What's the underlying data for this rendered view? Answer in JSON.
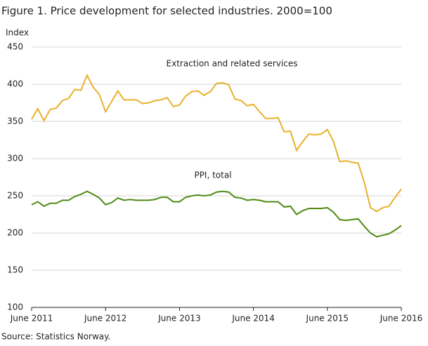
{
  "chart_data": {
    "type": "line",
    "title": "Figure 1. Price development for selected industries. 2000=100",
    "y_label": "Index",
    "source": "Source: Statistics Norway.",
    "annotations": [
      "Extraction and related services",
      "PPI, total"
    ],
    "categories": [
      "June 2011",
      null,
      null,
      null,
      null,
      null,
      null,
      null,
      null,
      null,
      null,
      null,
      "June 2012",
      null,
      null,
      null,
      null,
      null,
      null,
      null,
      null,
      null,
      null,
      null,
      "June 2013",
      null,
      null,
      null,
      null,
      null,
      null,
      null,
      null,
      null,
      null,
      null,
      "June 2014",
      null,
      null,
      null,
      null,
      null,
      null,
      null,
      null,
      null,
      null,
      null,
      "June 2015",
      null,
      null,
      null,
      null,
      null,
      null,
      null,
      null,
      null,
      null,
      null,
      "June 2016"
    ],
    "series": [
      {
        "name": "Extraction and related services",
        "color": "#e8b12c",
        "values": [
          353,
          367,
          351,
          366,
          368,
          378,
          381,
          393,
          392,
          412,
          396,
          386,
          363,
          377,
          391,
          379,
          379,
          379,
          374,
          375,
          378,
          379,
          382,
          370,
          372,
          384,
          390,
          391,
          385,
          390,
          401,
          402,
          399,
          380,
          378,
          371,
          373,
          363,
          354,
          354,
          355,
          336,
          337,
          311,
          323,
          333,
          332,
          333,
          339,
          323,
          296,
          297,
          295,
          294,
          268,
          234,
          229,
          234,
          236,
          248,
          259
        ]
      },
      {
        "name": "PPI, total",
        "color": "#4f8a14",
        "values": [
          238,
          242,
          236,
          240,
          240,
          244,
          244,
          249,
          252,
          256,
          252,
          247,
          238,
          241,
          247,
          244,
          245,
          244,
          244,
          244,
          245,
          248,
          248,
          242,
          242,
          248,
          250,
          251,
          250,
          251,
          255,
          256,
          255,
          248,
          247,
          244,
          245,
          244,
          242,
          242,
          242,
          235,
          236,
          225,
          230,
          233,
          233,
          233,
          234,
          228,
          218,
          217,
          218,
          219,
          209,
          200,
          195,
          197,
          199,
          204,
          210
        ]
      }
    ],
    "ylim": [
      100,
      450
    ],
    "yticks": [
      100,
      150,
      200,
      250,
      300,
      350,
      400,
      450
    ],
    "grid": true
  }
}
